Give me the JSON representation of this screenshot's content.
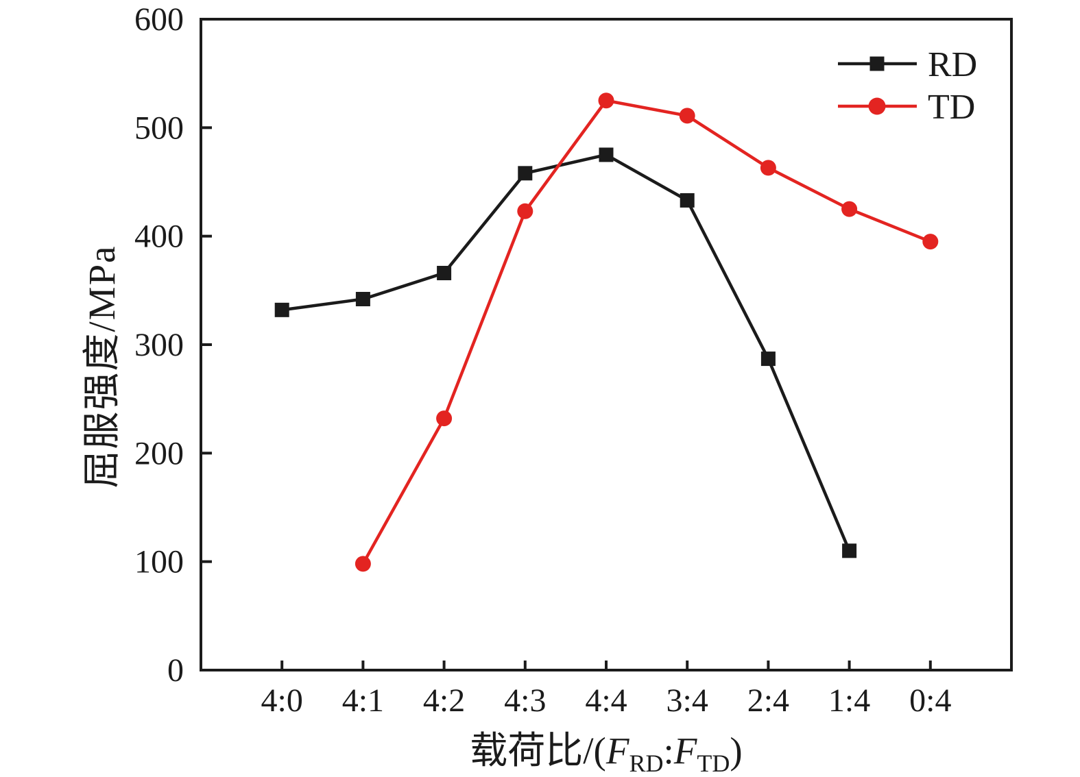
{
  "chart_data": {
    "type": "line",
    "title": "",
    "ylabel": "屈服强度/MPa",
    "xlabel": {
      "prefix": "载荷比/(",
      "f1": "F",
      "sub1": "RD",
      "colon": ":",
      "f2": "F",
      "sub2": "TD",
      "suffix": ")"
    },
    "categories": [
      "4:0",
      "4:1",
      "4:2",
      "4:3",
      "4:4",
      "3:4",
      "2:4",
      "1:4",
      "0:4"
    ],
    "y_ticks": [
      0,
      100,
      200,
      300,
      400,
      500,
      600
    ],
    "ylim": [
      0,
      600
    ],
    "grid": false,
    "legend_position": "top-right",
    "series": [
      {
        "name": "RD",
        "color": "#1b1b1b",
        "marker": "square",
        "categories": [
          "4:0",
          "4:1",
          "4:2",
          "4:3",
          "4:4",
          "3:4",
          "2:4",
          "1:4"
        ],
        "values": [
          332,
          342,
          366,
          458,
          475,
          433,
          287,
          110
        ]
      },
      {
        "name": "TD",
        "color": "#e32421",
        "marker": "circle",
        "categories": [
          "4:1",
          "4:2",
          "4:3",
          "4:4",
          "3:4",
          "2:4",
          "1:4",
          "0:4"
        ],
        "values": [
          98,
          232,
          423,
          525,
          511,
          463,
          425,
          395
        ]
      }
    ]
  },
  "colors": {
    "axis": "#1b1b1b",
    "background": "#ffffff",
    "rd": "#1b1b1b",
    "td": "#e32421"
  }
}
